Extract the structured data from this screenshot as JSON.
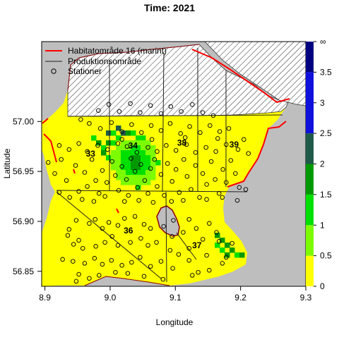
{
  "chart_data": {
    "type": "heatmap",
    "title": "Time: 2021",
    "xlabel": "Longitude",
    "ylabel": "Latitude",
    "xlim": [
      8.895,
      9.3
    ],
    "ylim": [
      56.835,
      57.08
    ],
    "xticks": [
      8.9,
      9.0,
      9.1,
      9.2,
      9.3
    ],
    "xtick_labels": [
      "8.9",
      "9.0",
      "9.1",
      "9.2",
      "9.3"
    ],
    "yticks": [
      56.85,
      56.9,
      56.95,
      57.0
    ],
    "ytick_labels": [
      "56.85",
      "56.90",
      "56.95",
      "57.00"
    ],
    "colorbar": {
      "ticks": [
        0,
        0.5,
        1,
        1.5,
        2,
        2.5,
        3,
        3.5
      ],
      "tick_labels": [
        "0",
        "0.5",
        "1",
        "1.5",
        "2",
        "2.5",
        "3",
        "3.5"
      ],
      "top_label": "∞",
      "bins": [
        {
          "from": 0,
          "to": 0.5,
          "color": "#ffff00"
        },
        {
          "from": 0.5,
          "to": 1.0,
          "color": "#7cfc00"
        },
        {
          "from": 1.0,
          "to": 1.5,
          "color": "#00e000"
        },
        {
          "from": 1.5,
          "to": 2.0,
          "color": "#009900"
        },
        {
          "from": 2.0,
          "to": 2.5,
          "color": "#1e5a4a"
        },
        {
          "from": 2.5,
          "to": 3.5,
          "color": "#1010dd"
        },
        {
          "from": 3.5,
          "to": 4.0,
          "color": "#000080"
        }
      ]
    },
    "legend": {
      "placement": "top-left",
      "entries": [
        {
          "label": "Habitatområde 16 (marint)",
          "symbol": "line",
          "color": "#ff0000"
        },
        {
          "label": "Produktionsområde",
          "symbol": "line",
          "color": "#555555"
        },
        {
          "label": "Stationer",
          "symbol": "circle",
          "color": "#000000"
        }
      ]
    },
    "area_labels": [
      {
        "text": "33",
        "lon": 8.97,
        "lat": 56.965
      },
      {
        "text": "34",
        "lon": 9.035,
        "lat": 56.973
      },
      {
        "text": "38",
        "lon": 9.11,
        "lat": 56.976
      },
      {
        "text": "39",
        "lon": 9.19,
        "lat": 56.974
      },
      {
        "text": "36",
        "lon": 9.028,
        "lat": 56.888
      },
      {
        "text": "37",
        "lon": 9.133,
        "lat": 56.873
      }
    ],
    "stations": [
      [
        8.948,
        56.901
      ],
      [
        8.952,
        56.881
      ],
      [
        8.968,
        56.898
      ],
      [
        8.977,
        56.902
      ],
      [
        8.988,
        56.893
      ],
      [
        8.998,
        56.899
      ],
      [
        9.012,
        56.896
      ],
      [
        9.022,
        56.903
      ],
      [
        9.038,
        56.905
      ],
      [
        9.052,
        56.897
      ],
      [
        9.062,
        56.893
      ],
      [
        9.082,
        56.895
      ],
      [
        9.097,
        56.901
      ],
      [
        9.121,
        56.902
      ],
      [
        9.132,
        56.893
      ],
      [
        9.152,
        56.898
      ],
      [
        9.163,
        56.889
      ],
      [
        8.935,
        56.886
      ],
      [
        8.944,
        56.877
      ],
      [
        8.958,
        56.873
      ],
      [
        8.978,
        56.875
      ],
      [
        8.992,
        56.879
      ],
      [
        9.003,
        56.885
      ],
      [
        9.012,
        56.876
      ],
      [
        9.031,
        56.879
      ],
      [
        9.047,
        56.883
      ],
      [
        9.058,
        56.876
      ],
      [
        9.071,
        56.879
      ],
      [
        9.092,
        56.871
      ],
      [
        9.105,
        56.867
      ],
      [
        9.121,
        56.873
      ],
      [
        9.148,
        56.866
      ],
      [
        9.167,
        56.88
      ],
      [
        9.178,
        56.864
      ],
      [
        8.943,
        56.86
      ],
      [
        8.961,
        56.858
      ],
      [
        8.976,
        56.863
      ],
      [
        8.988,
        56.857
      ],
      [
        9.002,
        56.861
      ],
      [
        9.018,
        56.856
      ],
      [
        9.033,
        56.859
      ],
      [
        9.046,
        56.864
      ],
      [
        9.062,
        56.855
      ],
      [
        9.078,
        56.86
      ],
      [
        9.096,
        56.853
      ],
      [
        9.121,
        56.861
      ],
      [
        9.135,
        56.849
      ],
      [
        9.152,
        56.851
      ],
      [
        9.172,
        56.858
      ],
      [
        8.952,
        56.847
      ],
      [
        8.968,
        56.843
      ],
      [
        8.983,
        56.846
      ],
      [
        9.008,
        56.849
      ],
      [
        9.027,
        56.848
      ],
      [
        9.052,
        56.845
      ],
      [
        9.081,
        56.842
      ],
      [
        9.126,
        56.846
      ],
      [
        8.927,
        56.862
      ],
      [
        8.937,
        56.892
      ],
      [
        8.948,
        56.84
      ],
      [
        9.095,
        56.885
      ],
      [
        9.112,
        56.889
      ],
      [
        9.142,
        56.882
      ],
      [
        9.187,
        56.878
      ],
      [
        8.905,
        56.959
      ],
      [
        8.915,
        56.948
      ],
      [
        8.925,
        56.962
      ],
      [
        8.933,
        56.941
      ],
      [
        8.947,
        56.956
      ],
      [
        8.952,
        56.93
      ],
      [
        8.961,
        56.949
      ],
      [
        8.965,
        56.935
      ],
      [
        8.972,
        56.962
      ],
      [
        8.978,
        56.941
      ],
      [
        8.983,
        56.928
      ],
      [
        8.988,
        56.951
      ],
      [
        8.995,
        56.939
      ],
      [
        9.003,
        56.96
      ],
      [
        9.008,
        56.946
      ],
      [
        9.013,
        56.931
      ],
      [
        9.018,
        56.955
      ],
      [
        9.025,
        56.942
      ],
      [
        9.028,
        56.926
      ],
      [
        9.032,
        56.963
      ],
      [
        9.038,
        56.95
      ],
      [
        9.042,
        56.934
      ],
      [
        9.047,
        56.957
      ],
      [
        9.053,
        56.941
      ],
      [
        9.058,
        56.928
      ],
      [
        9.062,
        56.953
      ],
      [
        9.068,
        56.962
      ],
      [
        9.072,
        56.935
      ],
      [
        9.078,
        56.947
      ],
      [
        9.083,
        56.926
      ],
      [
        9.088,
        56.958
      ],
      [
        9.095,
        56.94
      ],
      [
        9.101,
        56.952
      ],
      [
        9.106,
        56.929
      ],
      [
        9.113,
        56.962
      ],
      [
        9.118,
        56.945
      ],
      [
        9.124,
        56.932
      ],
      [
        9.131,
        56.956
      ],
      [
        9.137,
        56.924
      ],
      [
        9.142,
        56.948
      ],
      [
        9.148,
        56.937
      ],
      [
        9.155,
        56.96
      ],
      [
        9.161,
        56.942
      ],
      [
        9.167,
        56.928
      ],
      [
        9.173,
        56.952
      ],
      [
        9.178,
        56.939
      ],
      [
        9.185,
        56.961
      ],
      [
        9.192,
        56.948
      ],
      [
        9.198,
        56.934
      ],
      [
        8.922,
        56.929
      ],
      [
        8.938,
        56.924
      ],
      [
        8.957,
        56.922
      ],
      [
        8.975,
        56.92
      ],
      [
        8.992,
        56.925
      ],
      [
        9.022,
        56.92
      ],
      [
        9.044,
        56.921
      ],
      [
        9.066,
        56.919
      ],
      [
        9.094,
        56.92
      ],
      [
        9.112,
        56.921
      ],
      [
        9.148,
        56.922
      ],
      [
        9.172,
        56.924
      ],
      [
        9.195,
        56.921
      ],
      [
        9.208,
        56.932
      ],
      [
        8.922,
        56.976
      ],
      [
        8.937,
        56.972
      ],
      [
        8.952,
        56.978
      ],
      [
        8.965,
        56.97
      ],
      [
        8.981,
        56.976
      ],
      [
        8.996,
        56.972
      ],
      [
        9.012,
        56.978
      ],
      [
        9.026,
        56.975
      ],
      [
        9.041,
        56.969
      ],
      [
        9.058,
        56.974
      ],
      [
        9.072,
        56.97
      ],
      [
        9.086,
        56.976
      ],
      [
        9.101,
        56.971
      ],
      [
        9.117,
        56.977
      ],
      [
        9.131,
        56.969
      ],
      [
        9.147,
        56.974
      ],
      [
        9.162,
        56.97
      ],
      [
        9.178,
        56.977
      ],
      [
        9.196,
        56.972
      ],
      [
        9.212,
        56.968
      ],
      [
        8.968,
        56.998
      ],
      [
        8.985,
        56.993
      ],
      [
        9.002,
        56.999
      ],
      [
        9.018,
        56.99
      ],
      [
        9.033,
        56.997
      ],
      [
        9.048,
        56.989
      ],
      [
        9.063,
        56.996
      ],
      [
        9.078,
        56.991
      ],
      [
        9.092,
        56.998
      ],
      [
        9.108,
        56.988
      ],
      [
        9.122,
        56.995
      ],
      [
        9.138,
        56.989
      ],
      [
        9.153,
        56.996
      ],
      [
        9.168,
        56.99
      ],
      [
        9.182,
        56.993
      ],
      [
        8.982,
        57.011
      ],
      [
        8.998,
        57.017
      ],
      [
        9.014,
        57.01
      ],
      [
        9.031,
        57.018
      ],
      [
        9.046,
        57.009
      ],
      [
        9.062,
        57.016
      ],
      [
        9.078,
        57.008
      ],
      [
        9.093,
        57.015
      ],
      [
        9.109,
        57.01
      ],
      [
        9.126,
        57.017
      ],
      [
        9.142,
        57.009
      ],
      [
        9.158,
        57.006
      ],
      [
        9.018,
        56.982
      ],
      [
        9.064,
        56.982
      ],
      [
        9.115,
        56.984
      ],
      [
        9.165,
        56.983
      ],
      [
        8.955,
        57.002
      ],
      [
        9.205,
        56.982
      ]
    ]
  }
}
